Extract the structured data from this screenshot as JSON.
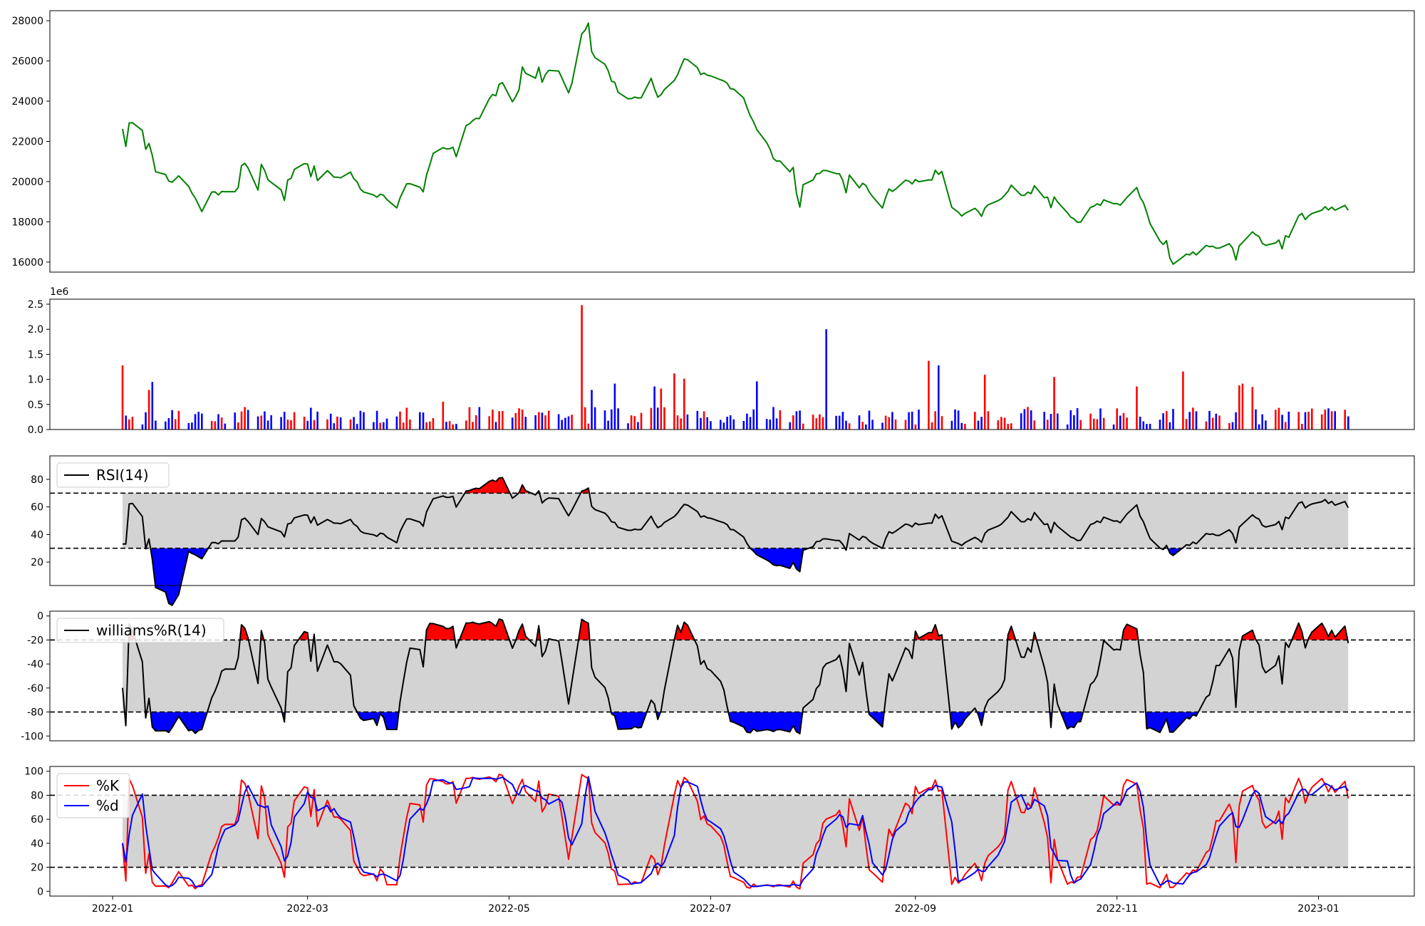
{
  "chart_data": [
    {
      "type": "line",
      "panel": "price",
      "x_start": "2022-01-04",
      "x_end": "2023-01-10",
      "ylim": [
        15500,
        28500
      ],
      "yticks": [
        16000,
        18000,
        20000,
        22000,
        24000,
        26000,
        28000
      ],
      "series": [
        {
          "color": "#008000",
          "anchors": [
            [
              "2022-01-04",
              22600
            ],
            [
              "2022-01-05",
              21800
            ],
            [
              "2022-01-06",
              22900
            ],
            [
              "2022-01-10",
              22500
            ],
            [
              "2022-01-11",
              21600
            ],
            [
              "2022-01-12",
              21800
            ],
            [
              "2022-01-14",
              20600
            ],
            [
              "2022-01-18",
              20100
            ],
            [
              "2022-01-20",
              20000
            ],
            [
              "2022-01-21",
              20400
            ],
            [
              "2022-01-24",
              19800
            ],
            [
              "2022-01-26",
              19300
            ],
            [
              "2022-01-27",
              18800
            ],
            [
              "2022-01-28",
              18400
            ],
            [
              "2022-01-29",
              17900
            ],
            [
              "2022-01-31",
              19400
            ],
            [
              "2022-02-08",
              19600
            ],
            [
              "2022-02-09",
              20900
            ],
            [
              "2022-02-12",
              20700
            ],
            [
              "2022-02-13",
              20500
            ],
            [
              "2022-02-14",
              19700
            ],
            [
              "2022-02-15",
              20800
            ],
            [
              "2022-02-16",
              20500
            ],
            [
              "2022-02-17",
              20000
            ],
            [
              "2022-02-21",
              19500
            ],
            [
              "2022-02-22",
              19000
            ],
            [
              "2022-02-23",
              20200
            ],
            [
              "2022-02-24",
              20200
            ],
            [
              "2022-02-25",
              20700
            ],
            [
              "2022-03-01",
              20900
            ],
            [
              "2022-03-02",
              20300
            ],
            [
              "2022-03-03",
              20700
            ],
            [
              "2022-03-04",
              20100
            ],
            [
              "2022-03-05",
              20600
            ],
            [
              "2022-03-09",
              20300
            ],
            [
              "2022-03-12",
              20100
            ],
            [
              "2022-03-13",
              20800
            ],
            [
              "2022-03-17",
              19600
            ],
            [
              "2022-03-22",
              19200
            ],
            [
              "2022-03-23",
              19400
            ],
            [
              "2022-03-24",
              19300
            ],
            [
              "2022-03-28",
              18800
            ],
            [
              "2022-03-31",
              19900
            ],
            [
              "2022-04-02",
              20000
            ],
            [
              "2022-04-05",
              19600
            ],
            [
              "2022-04-07",
              20900
            ],
            [
              "2022-04-08",
              21500
            ],
            [
              "2022-04-10",
              21600
            ],
            [
              "2022-04-14",
              21600
            ],
            [
              "2022-04-15",
              21300
            ],
            [
              "2022-04-17",
              21600
            ],
            [
              "2022-04-18",
              22800
            ],
            [
              "2022-04-21",
              23100
            ],
            [
              "2022-04-23",
              23300
            ],
            [
              "2022-04-24",
              24400
            ],
            [
              "2022-04-25",
              24200
            ],
            [
              "2022-04-27",
              24400
            ],
            [
              "2022-04-28",
              24900
            ],
            [
              "2022-04-30",
              24800
            ],
            [
              "2022-05-01",
              24700
            ],
            [
              "2022-05-02",
              23900
            ],
            [
              "2022-05-04",
              24600
            ],
            [
              "2022-05-05",
              25700
            ],
            [
              "2022-05-07",
              25200
            ],
            [
              "2022-05-08",
              24800
            ],
            [
              "2022-05-10",
              25600
            ],
            [
              "2022-05-11",
              25000
            ],
            [
              "2022-05-12",
              25300
            ],
            [
              "2022-05-14",
              26000
            ],
            [
              "2022-05-16",
              25400
            ],
            [
              "2022-05-18",
              24800
            ],
            [
              "2022-05-19",
              24500
            ],
            [
              "2022-05-20",
              24800
            ],
            [
              "2022-05-21",
              24600
            ],
            [
              "2022-05-22",
              27200
            ],
            [
              "2022-05-24",
              27600
            ],
            [
              "2022-05-25",
              27900
            ],
            [
              "2022-05-26",
              26400
            ],
            [
              "2022-05-27",
              26200
            ],
            [
              "2022-05-29",
              26400
            ],
            [
              "2022-06-01",
              25100
            ],
            [
              "2022-06-03",
              24500
            ],
            [
              "2022-06-04",
              25000
            ],
            [
              "2022-06-06",
              24100
            ],
            [
              "2022-06-09",
              24100
            ],
            [
              "2022-06-11",
              24000
            ],
            [
              "2022-06-12",
              25700
            ],
            [
              "2022-06-15",
              24200
            ],
            [
              "2022-06-17",
              24500
            ],
            [
              "2022-06-21",
              25200
            ],
            [
              "2022-06-23",
              26100
            ],
            [
              "2022-06-25",
              25800
            ],
            [
              "2022-06-27",
              25700
            ],
            [
              "2022-06-28",
              25300
            ],
            [
              "2022-07-01",
              25300
            ],
            [
              "2022-07-04",
              25000
            ],
            [
              "2022-07-07",
              24700
            ],
            [
              "2022-07-10",
              24600
            ],
            [
              "2022-07-12",
              23800
            ],
            [
              "2022-07-15",
              22500
            ],
            [
              "2022-07-17",
              22400
            ],
            [
              "2022-07-20",
              21200
            ],
            [
              "2022-07-22",
              21000
            ],
            [
              "2022-07-23",
              20700
            ],
            [
              "2022-07-24",
              20300
            ],
            [
              "2022-07-26",
              20600
            ],
            [
              "2022-07-27",
              19300
            ],
            [
              "2022-07-28",
              18800
            ],
            [
              "2022-07-29",
              19800
            ],
            [
              "2022-08-02",
              20300
            ],
            [
              "2022-08-04",
              20600
            ],
            [
              "2022-08-06",
              20400
            ],
            [
              "2022-08-07",
              19800
            ],
            [
              "2022-08-08",
              20500
            ],
            [
              "2022-08-10",
              20100
            ],
            [
              "2022-08-11",
              19500
            ],
            [
              "2022-08-12",
              20300
            ],
            [
              "2022-08-14",
              19500
            ],
            [
              "2022-08-16",
              19900
            ],
            [
              "2022-08-18",
              19500
            ],
            [
              "2022-08-21",
              18400
            ],
            [
              "2022-08-24",
              19600
            ],
            [
              "2022-08-26",
              19600
            ],
            [
              "2022-08-29",
              20000
            ],
            [
              "2022-09-02",
              20000
            ],
            [
              "2022-09-03",
              20300
            ],
            [
              "2022-09-06",
              20000
            ],
            [
              "2022-09-07",
              20500
            ],
            [
              "2022-09-09",
              20400
            ],
            [
              "2022-09-10",
              18900
            ],
            [
              "2022-09-13",
              18700
            ],
            [
              "2022-09-15",
              18400
            ],
            [
              "2022-09-17",
              18300
            ],
            [
              "2022-09-18",
              18700
            ],
            [
              "2022-09-21",
              18400
            ],
            [
              "2022-09-22",
              18700
            ],
            [
              "2022-09-25",
              18900
            ],
            [
              "2022-09-28",
              19400
            ],
            [
              "2022-09-30",
              19800
            ],
            [
              "2022-10-01",
              19200
            ],
            [
              "2022-10-03",
              19300
            ],
            [
              "2022-10-06",
              19500
            ],
            [
              "2022-10-08",
              19900
            ],
            [
              "2022-10-09",
              19500
            ],
            [
              "2022-10-11",
              19100
            ],
            [
              "2022-10-12",
              18800
            ],
            [
              "2022-10-13",
              19300
            ],
            [
              "2022-10-16",
              18700
            ],
            [
              "2022-10-17",
              18400
            ],
            [
              "2022-10-19",
              18100
            ],
            [
              "2022-10-21",
              18100
            ],
            [
              "2022-10-22",
              18800
            ],
            [
              "2022-10-26",
              18900
            ],
            [
              "2022-10-29",
              19000
            ],
            [
              "2022-10-30",
              18900
            ],
            [
              "2022-11-01",
              19000
            ],
            [
              "2022-11-02",
              18900
            ],
            [
              "2022-11-07",
              19700
            ],
            [
              "2022-11-08",
              19100
            ],
            [
              "2022-11-09",
              18900
            ],
            [
              "2022-11-11",
              18000
            ],
            [
              "2022-11-12",
              17600
            ],
            [
              "2022-11-14",
              17100
            ],
            [
              "2022-11-15",
              16800
            ],
            [
              "2022-11-16",
              17000
            ],
            [
              "2022-11-17",
              16200
            ],
            [
              "2022-11-18",
              16000
            ],
            [
              "2022-11-19",
              16000
            ],
            [
              "2022-11-21",
              16200
            ],
            [
              "2022-11-24",
              16600
            ],
            [
              "2022-11-26",
              16200
            ],
            [
              "2022-11-27",
              16700
            ],
            [
              "2022-11-28",
              16900
            ],
            [
              "2022-12-02",
              16600
            ],
            [
              "2022-12-03",
              16300
            ],
            [
              "2022-12-05",
              16900
            ],
            [
              "2022-12-06",
              16600
            ],
            [
              "2022-12-07",
              16100
            ],
            [
              "2022-12-08",
              16900
            ],
            [
              "2022-12-11",
              17000
            ],
            [
              "2022-12-12",
              17500
            ],
            [
              "2022-12-14",
              17200
            ],
            [
              "2022-12-15",
              16800
            ],
            [
              "2022-12-18",
              16800
            ],
            [
              "2022-12-19",
              16900
            ],
            [
              "2022-12-20",
              17000
            ],
            [
              "2022-12-21",
              16700
            ],
            [
              "2022-12-22",
              17200
            ],
            [
              "2022-12-25",
              17300
            ],
            [
              "2022-12-26",
              18200
            ],
            [
              "2022-12-27",
              18300
            ],
            [
              "2022-12-28",
              18000
            ],
            [
              "2022-12-30",
              18400
            ],
            [
              "2022-12-31",
              18300
            ],
            [
              "2023-01-01",
              18200
            ],
            [
              "2023-01-02",
              18700
            ]
          ],
          "note_ignore": "unused"
        }
      ]
    },
    {
      "type": "bar",
      "panel": "volume",
      "scale_label": "1e6",
      "ylim": [
        0,
        2.6
      ],
      "yticks": [
        "0.0",
        "0.5",
        "1.0",
        "1.5",
        "2.0",
        "2.5"
      ]
    },
    {
      "type": "line",
      "panel": "rsi",
      "legend": "RSI(14)",
      "ylim": [
        3,
        97
      ],
      "yticks": [
        20,
        40,
        60,
        80
      ],
      "upper": 70,
      "lower": 30
    },
    {
      "type": "line",
      "panel": "williams",
      "legend": "williams%R(14)",
      "ylim": [
        -104,
        4
      ],
      "yticks": [
        0,
        -20,
        -40,
        -60,
        -80,
        -100
      ],
      "upper": -20,
      "lower": -80
    },
    {
      "type": "line",
      "panel": "stochastic",
      "legend_k": "%K",
      "legend_d": "%d",
      "ylim": [
        -4,
        104
      ],
      "yticks": [
        0,
        20,
        40,
        60,
        80,
        100
      ],
      "upper": 80,
      "lower": 20
    }
  ],
  "x_axis": {
    "tick_labels": [
      "2022-01",
      "2022-03",
      "2022-05",
      "2022-07",
      "2022-09",
      "2022-11",
      "2023-01"
    ]
  },
  "colors": {
    "price": "#008000",
    "up": "#ff0000",
    "down": "#0000ff",
    "neutral": "#000000",
    "band": "#d3d3d3",
    "k": "#ff0000",
    "d": "#0000ff"
  }
}
